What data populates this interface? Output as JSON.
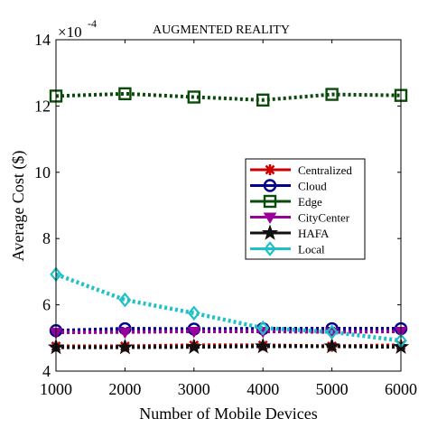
{
  "chart_data": {
    "type": "line",
    "title": "AUGMENTED REALITY",
    "xlabel": "Number of Mobile Devices",
    "ylabel": "Average Cost ($)",
    "y_exponent_label": "×10",
    "y_exponent_power": "-4",
    "x": [
      1000,
      2000,
      3000,
      4000,
      5000,
      6000
    ],
    "xlim": [
      1000,
      6000
    ],
    "ylim": [
      4,
      14
    ],
    "xticks": [
      1000,
      2000,
      3000,
      4000,
      5000,
      6000
    ],
    "yticks": [
      4,
      6,
      8,
      10,
      12,
      14
    ],
    "grid": false,
    "legend_position": "right-middle",
    "series": [
      {
        "name": "Centralized",
        "color": "#cc0000",
        "marker": "asterisk",
        "values": [
          4.75,
          4.75,
          4.78,
          4.78,
          4.75,
          4.78
        ]
      },
      {
        "name": "Cloud",
        "color": "#00008b",
        "marker": "circle",
        "values": [
          5.22,
          5.28,
          5.27,
          5.28,
          5.28,
          5.28
        ]
      },
      {
        "name": "Edge",
        "color": "#0a4a0a",
        "marker": "square",
        "values": [
          12.3,
          12.37,
          12.27,
          12.18,
          12.35,
          12.32
        ]
      },
      {
        "name": "CityCenter",
        "color": "#990099",
        "marker": "triangle-down",
        "values": [
          5.17,
          5.18,
          5.2,
          5.2,
          5.18,
          5.2
        ]
      },
      {
        "name": "HAFA",
        "color": "#111111",
        "marker": "pentagram",
        "values": [
          4.72,
          4.72,
          4.73,
          4.75,
          4.75,
          4.73
        ]
      },
      {
        "name": "Local",
        "color": "#20c0c8",
        "marker": "diamond",
        "values": [
          6.92,
          6.15,
          5.75,
          5.3,
          5.18,
          4.92
        ]
      }
    ]
  }
}
